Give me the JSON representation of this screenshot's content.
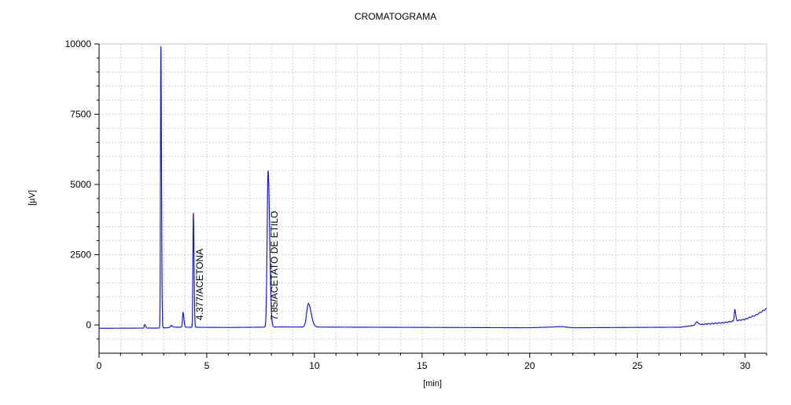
{
  "chart_data": {
    "type": "line",
    "title": "CROMATOGRAMA",
    "xlabel": "[min]",
    "ylabel": "[µV]",
    "xlim": [
      0,
      31
    ],
    "ylim": [
      -1000,
      10000
    ],
    "xticks": [
      0,
      5,
      10,
      15,
      20,
      25,
      30
    ],
    "yticks": [
      0,
      2500,
      5000,
      7500,
      10000
    ],
    "xtick_labels": [
      "0",
      "5",
      "10",
      "15",
      "20",
      "25",
      "30"
    ],
    "ytick_labels": [
      "0",
      "2500",
      "5000",
      "7500",
      "10000"
    ],
    "grid": true,
    "line_color": "#1a1acc",
    "grid_color": "#c8c8c8",
    "series": [
      {
        "baseline": [
          [
            0,
            -120
          ],
          [
            2.9,
            -110
          ],
          [
            3.5,
            -80
          ],
          [
            6,
            -90
          ],
          [
            7.5,
            -80
          ],
          [
            8.5,
            -70
          ],
          [
            12,
            -80
          ],
          [
            20,
            -100
          ],
          [
            21.5,
            -60
          ],
          [
            22,
            -100
          ],
          [
            27,
            -80
          ],
          [
            28,
            20
          ],
          [
            29,
            80
          ],
          [
            30,
            200
          ],
          [
            30.5,
            350
          ],
          [
            31,
            580
          ]
        ],
        "peaks": [
          {
            "rt": 2.12,
            "height": 120,
            "width": 0.025
          },
          {
            "rt": 2.87,
            "height": 10000,
            "width": 0.018
          },
          {
            "rt": 3.35,
            "height": 60,
            "width": 0.04
          },
          {
            "rt": 3.9,
            "height": 520,
            "width": 0.025
          },
          {
            "rt": 4.377,
            "height": 4050,
            "width": 0.02
          },
          {
            "rt": 7.85,
            "height": 5550,
            "width": 0.045
          },
          {
            "rt": 9.72,
            "height": 830,
            "width": 0.08
          },
          {
            "rt": 27.75,
            "height": 110,
            "width": 0.05
          },
          {
            "rt": 29.52,
            "height": 400,
            "width": 0.025
          }
        ]
      }
    ],
    "annotations": [
      {
        "text": "4.377/ACETONA",
        "x": 4.377
      },
      {
        "text": "7.85/ACETATO DE ETILO",
        "x": 7.85
      }
    ]
  }
}
